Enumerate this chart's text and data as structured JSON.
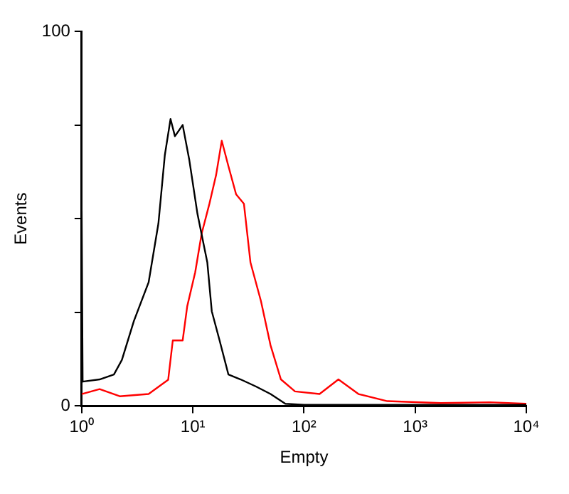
{
  "chart_data": {
    "type": "line",
    "xlabel": "Empty",
    "ylabel": "Events",
    "log": "x",
    "grid": false,
    "legend": false,
    "marker": "none",
    "line_style": "solid",
    "xlim": [
      1,
      10000
    ],
    "ylim": [
      0,
      100
    ],
    "xticks": [
      {
        "value": 1,
        "label": "10⁰"
      },
      {
        "value": 10,
        "label": "10¹"
      },
      {
        "value": 100,
        "label": "10²"
      },
      {
        "value": 1000,
        "label": "10³"
      },
      {
        "value": 10000,
        "label": "10⁴"
      }
    ],
    "yticks": [
      0,
      {
        "value": 25,
        "label": null
      },
      {
        "value": 50,
        "label": null
      },
      {
        "value": 75,
        "label": null
      },
      100
    ],
    "series": [
      {
        "color": "#000000",
        "x": [
          1,
          1.02,
          1.45,
          1.95,
          2.3,
          2.95,
          4,
          4.9,
          5.6,
          6.3,
          6.9,
          8.1,
          9.3,
          11,
          13.5,
          14.8,
          17.4,
          20.9,
          26.9,
          37,
          50,
          68,
          100,
          10000
        ],
        "values": [
          52,
          6.5,
          7.1,
          8.4,
          12.3,
          22.7,
          33,
          48.7,
          67,
          76.6,
          72,
          75,
          65.6,
          51.3,
          38.3,
          25.3,
          17.5,
          8.4,
          7.1,
          5.2,
          3.2,
          0.6,
          0.3,
          0.3
        ]
      },
      {
        "color": "#ff0000",
        "x": [
          1,
          1.45,
          2.2,
          4,
          6,
          6.6,
          8.1,
          8.9,
          10.5,
          12,
          14.1,
          16.2,
          18.2,
          20.9,
          24.5,
          28.8,
          33,
          41,
          50,
          62,
          83,
          138,
          204,
          309,
          562,
          1700,
          4700,
          10000
        ],
        "values": [
          3.2,
          4.5,
          2.6,
          3.2,
          7,
          17.5,
          17.5,
          26.6,
          35.7,
          46,
          54,
          61.7,
          70.8,
          64,
          56.5,
          54,
          38.3,
          28,
          16.2,
          7.1,
          3.9,
          3.2,
          7.1,
          3.2,
          1.3,
          0.8,
          1,
          0.6
        ]
      }
    ]
  }
}
